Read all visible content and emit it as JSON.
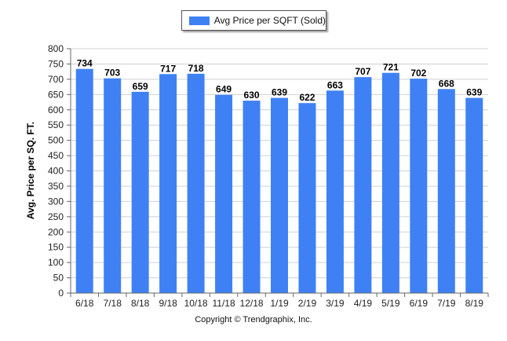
{
  "chart_data": {
    "type": "bar",
    "categories": [
      "6/18",
      "7/18",
      "8/18",
      "9/18",
      "10/18",
      "11/18",
      "12/18",
      "1/19",
      "2/19",
      "3/19",
      "4/19",
      "5/19",
      "6/19",
      "7/19",
      "8/19"
    ],
    "series": [
      {
        "name": "Avg Price per SQFT (Sold)",
        "values": [
          734,
          703,
          659,
          717,
          718,
          649,
          630,
          639,
          622,
          663,
          707,
          721,
          702,
          668,
          639
        ]
      }
    ],
    "ylabel": "Avg. Price per SQ. FT.",
    "xlabel": "",
    "ylim": [
      0,
      800
    ],
    "ytick_step": 50,
    "grid": true,
    "legend_position": "top-center",
    "bar_color": "#3f81f4",
    "data_labels": true
  },
  "footer": {
    "copyright": "Copyright © Trendgraphix, Inc."
  }
}
